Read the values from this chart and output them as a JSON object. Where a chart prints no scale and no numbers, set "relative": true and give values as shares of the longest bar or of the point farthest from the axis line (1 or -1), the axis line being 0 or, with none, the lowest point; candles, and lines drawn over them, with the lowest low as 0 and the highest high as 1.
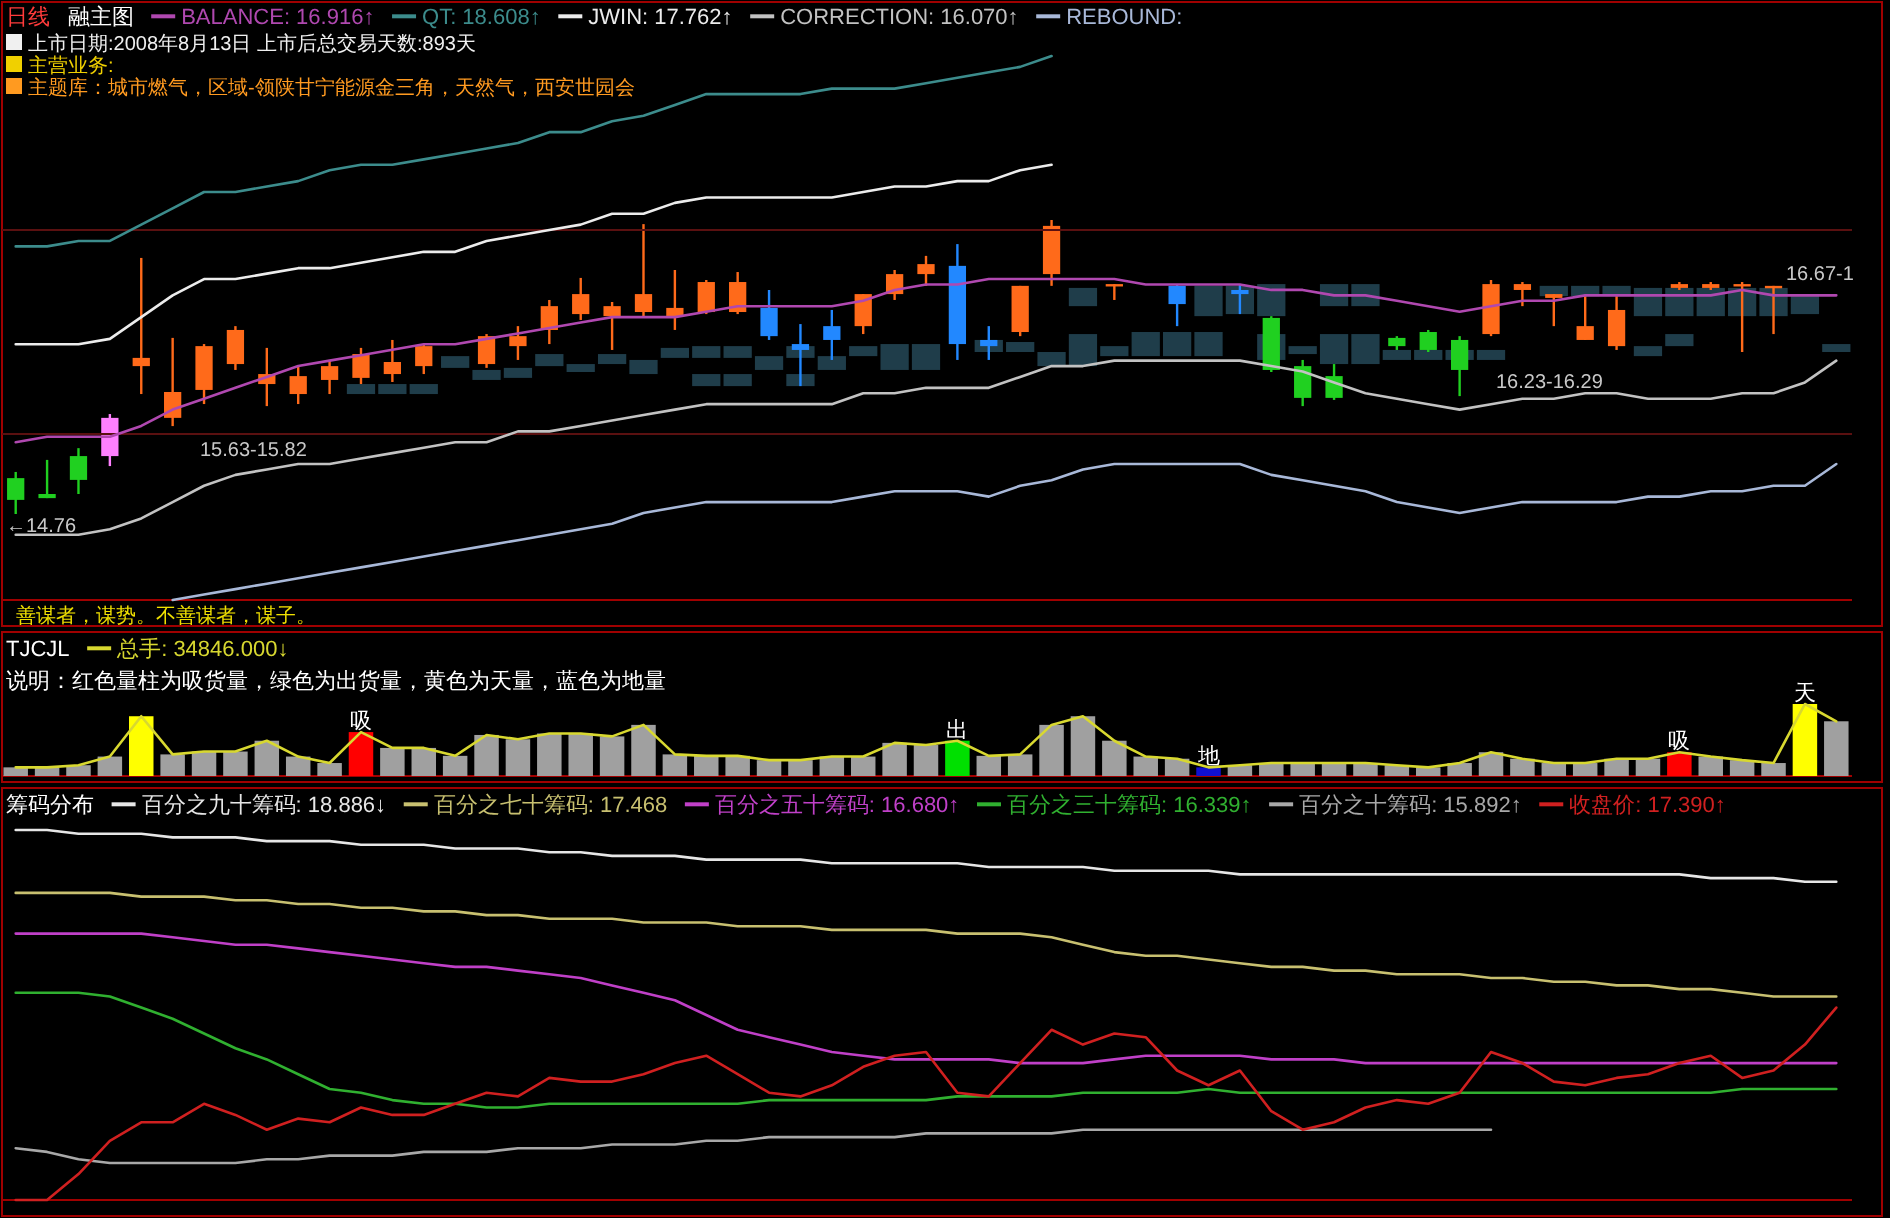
{
  "chart_data": [
    {
      "type": "candlestick",
      "title": "日线",
      "subtitle": "融主图",
      "relative": true,
      "categories": [
        null,
        null,
        null,
        null,
        null,
        null,
        null,
        null,
        null,
        null,
        null,
        null,
        null,
        null,
        null,
        null,
        null,
        null,
        null,
        null,
        null,
        null,
        null,
        null,
        null,
        null,
        null,
        null,
        null,
        null,
        null,
        null,
        null,
        null,
        null,
        null,
        null,
        null,
        null,
        null,
        null,
        null,
        null,
        null,
        null,
        null,
        null,
        null,
        null,
        null,
        null,
        null,
        null,
        null,
        null,
        null,
        null,
        null,
        null
      ],
      "ohlc": [
        [
          0.122,
          0.143,
          0,
          0.048
        ],
        [
          0.068,
          0.184,
          0.054,
          0.054
        ],
        [
          0.197,
          0.224,
          0.068,
          0.116
        ],
        [
          0.197,
          0.34,
          0.163,
          0.327
        ],
        [
          0.503,
          0.871,
          0.408,
          0.531
        ],
        [
          0.327,
          0.599,
          0.299,
          0.415
        ],
        [
          0.422,
          0.578,
          0.374,
          0.571
        ],
        [
          0.51,
          0.639,
          0.49,
          0.626
        ],
        [
          0.442,
          0.565,
          0.367,
          0.476
        ],
        [
          0.408,
          0.503,
          0.374,
          0.469
        ],
        [
          0.456,
          0.524,
          0.408,
          0.503
        ],
        [
          0.463,
          0.565,
          0.442,
          0.544
        ],
        [
          0.476,
          0.592,
          0.449,
          0.517
        ],
        [
          0.503,
          0.578,
          0.476,
          0.571
        ],
        null,
        [
          0.51,
          0.612,
          0.497,
          0.605
        ],
        [
          0.571,
          0.639,
          0.524,
          0.605
        ],
        [
          0.626,
          0.728,
          0.578,
          0.707
        ],
        [
          0.68,
          0.803,
          0.66,
          0.748
        ],
        [
          0.673,
          0.721,
          0.558,
          0.707
        ],
        [
          0.687,
          0.986,
          0.673,
          0.748
        ],
        [
          0.673,
          0.83,
          0.626,
          0.701
        ],
        [
          0.687,
          0.796,
          0.68,
          0.789
        ],
        [
          0.687,
          0.823,
          0.68,
          0.789
        ],
        [
          0.701,
          0.762,
          0.592,
          0.605
        ],
        [
          0.578,
          0.646,
          0.435,
          0.558
        ],
        [
          0.639,
          0.694,
          0.524,
          0.592
        ],
        [
          0.639,
          0.748,
          0.612,
          0.748
        ],
        [
          0.748,
          0.83,
          0.728,
          0.816
        ],
        [
          0.816,
          0.878,
          0.776,
          0.85
        ],
        [
          0.844,
          0.918,
          0.524,
          0.578
        ],
        [
          0.592,
          0.639,
          0.524,
          0.571
        ],
        [
          0.619,
          0.776,
          0.605,
          0.776
        ],
        [
          0.816,
          1,
          0.776,
          0.98
        ],
        null,
        [
          0.776,
          0.782,
          0.728,
          0.782
        ],
        null,
        [
          0.776,
          0.782,
          0.639,
          0.714
        ],
        null,
        [
          0.762,
          0.782,
          0.68,
          0.748
        ],
        [
          0.667,
          0.673,
          0.483,
          0.49
        ],
        [
          0.503,
          0.524,
          0.367,
          0.395
        ],
        [
          0.469,
          0.51,
          0.388,
          0.395
        ],
        null,
        [
          0.599,
          0.605,
          0.558,
          0.571
        ],
        [
          0.619,
          0.626,
          0.551,
          0.558
        ],
        [
          0.592,
          0.605,
          0.401,
          0.49
        ],
        [
          0.612,
          0.796,
          0.605,
          0.782
        ],
        [
          0.762,
          0.789,
          0.707,
          0.782
        ],
        [
          0.735,
          0.748,
          0.639,
          0.748
        ],
        [
          0.592,
          0.741,
          0.592,
          0.639
        ],
        [
          0.571,
          0.741,
          0.558,
          0.694
        ],
        null,
        [
          0.769,
          0.789,
          0.762,
          0.782
        ],
        [
          0.769,
          0.789,
          0.762,
          0.782
        ],
        [
          0.776,
          0.789,
          0.551,
          0.782
        ],
        [
          0.769,
          0.776,
          0.612,
          0.776
        ],
        null,
        null
      ],
      "colors": [
        "#20d020",
        "#20d020",
        "#20d020",
        "#ff80ff",
        "#ff6a1a",
        "#ff6a1a",
        "#ff6a1a",
        "#ff6a1a",
        "#ff6a1a",
        "#ff6a1a",
        "#ff6a1a",
        "#ff6a1a",
        "#ff6a1a",
        "#ff6a1a",
        null,
        "#ff6a1a",
        "#ff6a1a",
        "#ff6a1a",
        "#ff6a1a",
        "#ff6a1a",
        "#ff6a1a",
        "#ff6a1a",
        "#ff6a1a",
        "#ff6a1a",
        "#2288ff",
        "#2288ff",
        "#2288ff",
        "#ff6a1a",
        "#ff6a1a",
        "#ff6a1a",
        "#2288ff",
        "#2288ff",
        "#ff6a1a",
        "#ff6a1a",
        null,
        "#ff6a1a",
        null,
        "#2288ff",
        null,
        "#2288ff",
        "#20d020",
        "#20d020",
        "#20d020",
        null,
        "#20d020",
        "#20d020",
        "#20d020",
        "#ff6a1a",
        "#ff6a1a",
        "#ff6a1a",
        "#ff6a1a",
        "#ff6a1a",
        null,
        "#ff6a1a",
        "#ff6a1a",
        "#ff6a1a",
        "#ff6a1a",
        null,
        null
      ],
      "series": [
        {
          "type": "bar",
          "color": "#1f3d4a",
          "base": [
            null,
            null,
            null,
            null,
            null,
            null,
            null,
            null,
            null,
            null,
            null,
            null,
            null,
            null,
            null,
            null,
            null,
            null,
            null,
            null,
            null,
            null,
            null,
            null,
            null,
            null,
            null,
            null,
            null,
            null,
            null,
            null,
            null,
            null,
            0.707,
            null,
            null,
            null,
            0.673,
            0.68,
            0.673,
            null,
            0.707,
            0.707,
            null,
            null,
            null,
            null,
            null,
            0.741,
            0.741,
            0.741,
            0.673,
            0.673,
            0.673,
            0.673,
            0.673,
            0.68,
            null
          ],
          "values": [
            null,
            null,
            null,
            null,
            null,
            null,
            null,
            null,
            null,
            null,
            null,
            null,
            null,
            null,
            null,
            null,
            null,
            null,
            null,
            null,
            null,
            null,
            null,
            null,
            null,
            null,
            null,
            null,
            null,
            null,
            null,
            null,
            null,
            null,
            0.062,
            null,
            null,
            null,
            0.103,
            0.096,
            0.109,
            null,
            0.075,
            0.075,
            null,
            null,
            null,
            null,
            null,
            0.035,
            0.035,
            0.035,
            0.096,
            0.096,
            0.096,
            0.096,
            0.096,
            0.061,
            null
          ]
        },
        {
          "type": "bar",
          "color": "#1f3d4a",
          "base": [
            null,
            null,
            null,
            null,
            null,
            null,
            null,
            null,
            null,
            null,
            null,
            null,
            null,
            null,
            0.497,
            null,
            null,
            0.503,
            null,
            0.51,
            0.476,
            0.531,
            0.531,
            0.531,
            0.49,
            0.531,
            0.49,
            0.537,
            0.49,
            0.49,
            null,
            0.551,
            0.551,
            0.503,
            0.503,
            0.537,
            0.537,
            0.537,
            0.537,
            null,
            0.524,
            0.544,
            0.51,
            0.51,
            0.524,
            0.524,
            0.524,
            0.524,
            null,
            null,
            null,
            null,
            0.537,
            0.571,
            null,
            null,
            null,
            null,
            0.551
          ],
          "values": [
            null,
            null,
            null,
            null,
            null,
            null,
            null,
            null,
            null,
            null,
            null,
            null,
            null,
            null,
            0.04,
            null,
            null,
            0.041,
            null,
            0.034,
            0.048,
            0.034,
            0.04,
            0.04,
            0.047,
            0.04,
            0.047,
            0.034,
            0.088,
            0.088,
            null,
            0.041,
            0.034,
            0.048,
            0.109,
            0.034,
            0.082,
            0.082,
            0.082,
            null,
            0.088,
            0.027,
            0.102,
            0.102,
            0.034,
            0.034,
            0.034,
            0.034,
            null,
            null,
            null,
            null,
            0.034,
            0.041,
            null,
            null,
            null,
            null,
            0.027
          ]
        },
        {
          "type": "bar",
          "color": "#1f3d4a",
          "base": [
            null,
            null,
            null,
            null,
            null,
            null,
            null,
            null,
            null,
            null,
            null,
            0.408,
            0.408,
            0.408,
            null,
            0.456,
            0.463,
            null,
            0.483,
            null,
            null,
            null,
            0.435,
            0.435,
            null,
            0.435,
            null,
            null,
            null,
            null,
            null,
            null,
            null,
            null,
            null,
            null,
            null,
            null,
            null,
            null,
            null,
            null,
            null,
            null,
            null,
            null,
            null,
            null,
            null,
            null,
            null,
            null,
            null,
            null,
            null,
            null,
            null,
            null,
            null
          ],
          "values": [
            null,
            null,
            null,
            null,
            null,
            null,
            null,
            null,
            null,
            null,
            null,
            0.034,
            0.034,
            0.034,
            null,
            0.034,
            0.034,
            null,
            0.027,
            null,
            null,
            null,
            0.041,
            0.041,
            null,
            0.041,
            null,
            null,
            null,
            null,
            null,
            null,
            null,
            null,
            null,
            null,
            null,
            null,
            null,
            null,
            null,
            null,
            null,
            null,
            null,
            null,
            null,
            null,
            null,
            null,
            null,
            null,
            null,
            null,
            null,
            null,
            null,
            null,
            null
          ]
        }
      ],
      "annotations": [
        "上市日期:2008年8月13日 上市后总交易天数:893天",
        "主营业务:",
        "主题库：城市燃气，区域-领陕甘宁能源金三角，天然气，西安世园会",
        "←14.76",
        "15.63-15.82",
        "16.23-16.29",
        "16.67-1",
        "善谋者，谋势。不善谋者，谋子。"
      ]
    },
    {
      "type": "line",
      "relative": true,
      "legend": "top",
      "categories": [
        null,
        null,
        null,
        null,
        null,
        null,
        null,
        null,
        null,
        null,
        null,
        null,
        null,
        null,
        null,
        null,
        null,
        null,
        null,
        null,
        null,
        null,
        null,
        null,
        null,
        null,
        null,
        null,
        null,
        null,
        null,
        null,
        null,
        null,
        null,
        null,
        null,
        null,
        null,
        null,
        null,
        null,
        null,
        null,
        null,
        null,
        null,
        null,
        null,
        null,
        null,
        null,
        null,
        null,
        null,
        null,
        null,
        null,
        null
      ],
      "series": [
        {
          "name": "BALANCE: 16.916↑",
          "color": "#b048b0",
          "values": [
            0.29,
            0.3,
            0.3,
            0.3,
            0.32,
            0.35,
            0.37,
            0.39,
            0.41,
            0.43,
            0.44,
            0.45,
            0.46,
            0.47,
            0.47,
            0.48,
            0.49,
            0.5,
            0.51,
            0.52,
            0.52,
            0.52,
            0.53,
            0.54,
            0.54,
            0.54,
            0.54,
            0.55,
            0.57,
            0.58,
            0.58,
            0.59,
            0.59,
            0.59,
            0.59,
            0.59,
            0.58,
            0.58,
            0.58,
            0.58,
            0.57,
            0.57,
            0.56,
            0.56,
            0.55,
            0.54,
            0.53,
            0.54,
            0.55,
            0.55,
            0.56,
            0.56,
            0.56,
            0.56,
            0.56,
            0.57,
            0.56,
            0.56,
            0.56
          ]
        },
        {
          "name": "QT: 18.608↑",
          "color": "#3c8c8c",
          "values": [
            0.65,
            0.65,
            0.66,
            0.66,
            0.69,
            0.72,
            0.75,
            0.75,
            0.76,
            0.77,
            0.79,
            0.8,
            0.8,
            0.81,
            0.82,
            0.83,
            0.84,
            0.86,
            0.86,
            0.88,
            0.89,
            0.91,
            0.93,
            0.93,
            0.93,
            0.93,
            0.94,
            0.94,
            0.94,
            0.95,
            0.96,
            0.97,
            0.98,
            1,
            null,
            null,
            null,
            null,
            null,
            null,
            null,
            null,
            null,
            null,
            null,
            null,
            null,
            null,
            null,
            null,
            null,
            null,
            null,
            null,
            null,
            null,
            null,
            null,
            null
          ]
        },
        {
          "name": "JWIN: 17.762↑",
          "color": "#ececec",
          "values": [
            0.47,
            0.47,
            0.47,
            0.48,
            0.52,
            0.56,
            0.59,
            0.59,
            0.6,
            0.61,
            0.61,
            0.62,
            0.63,
            0.64,
            0.64,
            0.66,
            0.67,
            0.68,
            0.69,
            0.71,
            0.71,
            0.73,
            0.74,
            0.74,
            0.74,
            0.74,
            0.74,
            0.75,
            0.76,
            0.76,
            0.77,
            0.77,
            0.79,
            0.8,
            null,
            null,
            null,
            null,
            null,
            null,
            null,
            null,
            null,
            null,
            null,
            null,
            null,
            null,
            null,
            null,
            null,
            null,
            null,
            null,
            null,
            null,
            null,
            null,
            null
          ]
        },
        {
          "name": "CORRECTION: 16.070↑",
          "color": "#c2c2c2",
          "values": [
            0.12,
            0.12,
            0.12,
            0.13,
            0.15,
            0.18,
            0.21,
            0.23,
            0.24,
            0.25,
            0.25,
            0.26,
            0.27,
            0.28,
            0.29,
            0.29,
            0.31,
            0.31,
            0.32,
            0.33,
            0.34,
            0.35,
            0.36,
            0.36,
            0.36,
            0.36,
            0.36,
            0.38,
            0.38,
            0.39,
            0.39,
            0.39,
            0.41,
            0.43,
            0.43,
            0.44,
            0.44,
            0.44,
            0.44,
            0.44,
            0.43,
            0.42,
            0.4,
            0.38,
            0.37,
            0.36,
            0.35,
            0.36,
            0.37,
            0.37,
            0.38,
            0.38,
            0.37,
            0.37,
            0.37,
            0.38,
            0.38,
            0.4,
            0.44
          ]
        },
        {
          "name": "REBOUND:",
          "color": "#a8b8d8",
          "values": [
            null,
            null,
            null,
            null,
            null,
            0,
            0.01,
            0.02,
            0.03,
            0.04,
            0.05,
            0.06,
            0.07,
            0.08,
            0.09,
            0.1,
            0.11,
            0.12,
            0.13,
            0.14,
            0.16,
            0.17,
            0.18,
            0.18,
            0.18,
            0.18,
            0.18,
            0.19,
            0.2,
            0.2,
            0.2,
            0.19,
            0.21,
            0.22,
            0.24,
            0.25,
            0.25,
            0.25,
            0.25,
            0.25,
            0.23,
            0.22,
            0.21,
            0.2,
            0.18,
            0.17,
            0.16,
            0.17,
            0.18,
            0.18,
            0.18,
            0.18,
            0.19,
            0.19,
            0.2,
            0.2,
            0.21,
            0.21,
            0.25
          ]
        }
      ],
      "ref_lines": [
        {
          "axis": "y",
          "value": 0.68,
          "color": "#5a1010"
        },
        {
          "axis": "y",
          "value": 0.305,
          "color": "#5a1010"
        }
      ]
    },
    {
      "type": "bar",
      "title": "TJCJL",
      "relative": true,
      "legend": "top",
      "categories": [
        null,
        null,
        null,
        null,
        null,
        null,
        null,
        null,
        null,
        null,
        null,
        null,
        null,
        null,
        null,
        null,
        null,
        null,
        null,
        null,
        null,
        null,
        null,
        null,
        null,
        null,
        null,
        null,
        null,
        null,
        null,
        null,
        null,
        null,
        null,
        null,
        null,
        null,
        null,
        null,
        null,
        null,
        null,
        null,
        null,
        null,
        null,
        null,
        null,
        null,
        null,
        null,
        null,
        null,
        null,
        null,
        null,
        null,
        null
      ],
      "series": [
        {
          "values": [
            0.12,
            0.12,
            0.15,
            0.27,
            0.83,
            0.3,
            0.34,
            0.34,
            0.49,
            0.27,
            0.18,
            0.61,
            0.39,
            0.39,
            0.28,
            0.57,
            0.51,
            0.59,
            0.59,
            0.55,
            0.71,
            0.3,
            0.28,
            0.28,
            0.22,
            0.22,
            0.27,
            0.27,
            0.46,
            0.43,
            0.49,
            0.28,
            0.3,
            0.71,
            0.83,
            0.49,
            0.27,
            0.24,
            0.12,
            0.15,
            0.18,
            0.18,
            0.18,
            0.18,
            0.15,
            0.12,
            0.18,
            0.33,
            0.24,
            0.18,
            0.18,
            0.24,
            0.24,
            0.33,
            0.27,
            0.22,
            0.18,
            1,
            0.76
          ],
          "colors": [
            "#a0a0a0",
            "#a0a0a0",
            "#a0a0a0",
            "#a0a0a0",
            "#ffff00",
            "#a0a0a0",
            "#a0a0a0",
            "#a0a0a0",
            "#a0a0a0",
            "#a0a0a0",
            "#a0a0a0",
            "#ff0000",
            "#a0a0a0",
            "#a0a0a0",
            "#a0a0a0",
            "#a0a0a0",
            "#a0a0a0",
            "#a0a0a0",
            "#a0a0a0",
            "#a0a0a0",
            "#a0a0a0",
            "#a0a0a0",
            "#a0a0a0",
            "#a0a0a0",
            "#a0a0a0",
            "#a0a0a0",
            "#a0a0a0",
            "#a0a0a0",
            "#a0a0a0",
            "#a0a0a0",
            "#00e000",
            "#a0a0a0",
            "#a0a0a0",
            "#a0a0a0",
            "#a0a0a0",
            "#a0a0a0",
            "#a0a0a0",
            "#a0a0a0",
            "#1010d0",
            "#a0a0a0",
            "#a0a0a0",
            "#a0a0a0",
            "#a0a0a0",
            "#a0a0a0",
            "#a0a0a0",
            "#a0a0a0",
            "#a0a0a0",
            "#a0a0a0",
            "#a0a0a0",
            "#a0a0a0",
            "#a0a0a0",
            "#a0a0a0",
            "#a0a0a0",
            "#ff0000",
            "#a0a0a0",
            "#a0a0a0",
            "#a0a0a0",
            "#ffff00",
            "#a0a0a0"
          ]
        },
        {
          "type": "line",
          "name": "总手: 34846.000↓",
          "color": "#d8d830",
          "values": [
            0.12,
            0.12,
            0.15,
            0.27,
            0.83,
            0.3,
            0.34,
            0.34,
            0.49,
            0.27,
            0.18,
            0.61,
            0.39,
            0.39,
            0.28,
            0.57,
            0.51,
            0.59,
            0.59,
            0.55,
            0.71,
            0.3,
            0.28,
            0.28,
            0.22,
            0.22,
            0.27,
            0.27,
            0.46,
            0.43,
            0.49,
            0.28,
            0.3,
            0.71,
            0.83,
            0.49,
            0.27,
            0.24,
            0.12,
            0.15,
            0.18,
            0.18,
            0.18,
            0.18,
            0.15,
            0.12,
            0.18,
            0.33,
            0.24,
            0.18,
            0.18,
            0.24,
            0.24,
            0.33,
            0.27,
            0.22,
            0.18,
            1,
            0.76
          ]
        }
      ],
      "annotations": [
        "说明：红色量柱为吸货量，绿色为出货量，黄色为天量，蓝色为地量",
        "吸",
        "出",
        "地",
        "吸",
        "天"
      ]
    },
    {
      "type": "line",
      "title": "筹码分布",
      "relative": true,
      "legend": "top",
      "categories": [
        null,
        null,
        null,
        null,
        null,
        null,
        null,
        null,
        null,
        null,
        null,
        null,
        null,
        null,
        null,
        null,
        null,
        null,
        null,
        null,
        null,
        null,
        null,
        null,
        null,
        null,
        null,
        null,
        null,
        null,
        null,
        null,
        null,
        null,
        null,
        null,
        null,
        null,
        null,
        null,
        null,
        null,
        null,
        null,
        null,
        null,
        null,
        null,
        null,
        null,
        null,
        null,
        null,
        null,
        null,
        null,
        null,
        null,
        null
      ],
      "series": [
        {
          "name": "百分之九十筹码: 18.886↓",
          "color": "#e6e6e6",
          "values": [
            1,
            1,
            0.99,
            0.99,
            0.99,
            0.98,
            0.98,
            0.98,
            0.97,
            0.97,
            0.97,
            0.96,
            0.96,
            0.96,
            0.95,
            0.95,
            0.95,
            0.94,
            0.94,
            0.93,
            0.93,
            0.93,
            0.92,
            0.92,
            0.92,
            0.92,
            0.91,
            0.91,
            0.91,
            0.91,
            0.91,
            0.9,
            0.9,
            0.9,
            0.9,
            0.89,
            0.89,
            0.89,
            0.89,
            0.88,
            0.88,
            0.88,
            0.88,
            0.88,
            0.88,
            0.88,
            0.88,
            0.88,
            0.88,
            0.88,
            0.88,
            0.88,
            0.88,
            0.88,
            0.87,
            0.87,
            0.87,
            0.86,
            0.86
          ]
        },
        {
          "name": "百分之七十筹码: 17.468",
          "color": "#c8c070",
          "values": [
            0.83,
            0.83,
            0.83,
            0.83,
            0.82,
            0.82,
            0.82,
            0.81,
            0.81,
            0.8,
            0.8,
            0.79,
            0.79,
            0.78,
            0.78,
            0.77,
            0.77,
            0.76,
            0.76,
            0.76,
            0.75,
            0.75,
            0.75,
            0.74,
            0.74,
            0.74,
            0.73,
            0.73,
            0.73,
            0.73,
            0.72,
            0.72,
            0.72,
            0.71,
            0.69,
            0.67,
            0.66,
            0.66,
            0.65,
            0.64,
            0.63,
            0.63,
            0.62,
            0.62,
            0.61,
            0.61,
            0.61,
            0.6,
            0.6,
            0.59,
            0.59,
            0.58,
            0.58,
            0.57,
            0.57,
            0.56,
            0.55,
            0.55,
            0.55
          ]
        },
        {
          "name": "百分之五十筹码: 16.680↑",
          "color": "#c040c8",
          "values": [
            0.72,
            0.72,
            0.72,
            0.72,
            0.72,
            0.71,
            0.7,
            0.69,
            0.69,
            0.68,
            0.67,
            0.66,
            0.65,
            0.64,
            0.63,
            0.63,
            0.62,
            0.61,
            0.6,
            0.58,
            0.56,
            0.54,
            0.5,
            0.46,
            0.44,
            0.42,
            0.4,
            0.39,
            0.38,
            0.38,
            0.38,
            0.38,
            0.37,
            0.37,
            0.37,
            0.38,
            0.39,
            0.39,
            0.39,
            0.39,
            0.38,
            0.38,
            0.38,
            0.37,
            0.37,
            0.37,
            0.37,
            0.37,
            0.37,
            0.37,
            0.37,
            0.37,
            0.37,
            0.37,
            0.37,
            0.37,
            0.37,
            0.37,
            0.37
          ]
        },
        {
          "name": "百分之三十筹码: 16.339↑",
          "color": "#30b030",
          "values": [
            0.56,
            0.56,
            0.56,
            0.55,
            0.52,
            0.49,
            0.45,
            0.41,
            0.38,
            0.34,
            0.3,
            0.29,
            0.27,
            0.26,
            0.26,
            0.25,
            0.25,
            0.26,
            0.26,
            0.26,
            0.26,
            0.26,
            0.26,
            0.26,
            0.27,
            0.27,
            0.27,
            0.27,
            0.27,
            0.27,
            0.28,
            0.28,
            0.28,
            0.28,
            0.29,
            0.29,
            0.29,
            0.29,
            0.3,
            0.29,
            0.29,
            0.29,
            0.29,
            0.29,
            0.29,
            0.29,
            0.29,
            0.29,
            0.29,
            0.29,
            0.29,
            0.29,
            0.29,
            0.29,
            0.29,
            0.3,
            0.3,
            0.3,
            0.3
          ]
        },
        {
          "name": "百分之十筹码: 15.892↑",
          "color": "#a8a8a8",
          "values": [
            0.14,
            0.13,
            0.11,
            0.1,
            0.1,
            0.1,
            0.1,
            0.1,
            0.11,
            0.11,
            0.12,
            0.12,
            0.12,
            0.13,
            0.13,
            0.13,
            0.14,
            0.14,
            0.14,
            0.15,
            0.15,
            0.15,
            0.16,
            0.16,
            0.17,
            0.17,
            0.17,
            0.17,
            0.17,
            0.18,
            0.18,
            0.18,
            0.18,
            0.18,
            0.19,
            0.19,
            0.19,
            0.19,
            0.19,
            0.19,
            0.19,
            0.19,
            0.19,
            0.19,
            0.19,
            0.19,
            0.19,
            0.19,
            null,
            null,
            null,
            null,
            null,
            null,
            null,
            null,
            null,
            null,
            null
          ]
        },
        {
          "name": "收盘价: 17.390↑",
          "color": "#d02020",
          "values": [
            0,
            0,
            0.07,
            0.16,
            0.21,
            0.21,
            0.26,
            0.23,
            0.19,
            0.22,
            0.21,
            0.25,
            0.23,
            0.23,
            0.26,
            0.29,
            0.28,
            0.33,
            0.32,
            0.32,
            0.34,
            0.37,
            0.39,
            0.34,
            0.29,
            0.28,
            0.31,
            0.36,
            0.39,
            0.4,
            0.29,
            0.28,
            0.37,
            0.46,
            0.42,
            0.45,
            0.44,
            0.35,
            0.31,
            0.35,
            0.24,
            0.19,
            0.21,
            0.25,
            0.27,
            0.26,
            0.29,
            0.4,
            0.37,
            0.32,
            0.31,
            0.33,
            0.34,
            0.37,
            0.39,
            0.33,
            0.35,
            0.42,
            0.52
          ]
        }
      ]
    }
  ]
}
